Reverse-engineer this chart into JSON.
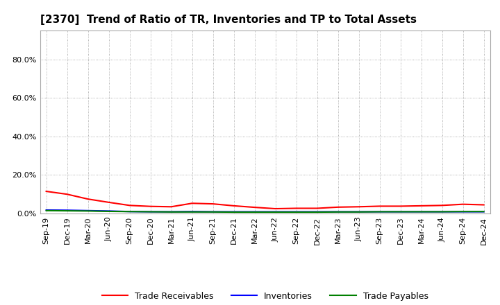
{
  "title": "[2370]  Trend of Ratio of TR, Inventories and TP to Total Assets",
  "x_labels": [
    "Sep-19",
    "Dec-19",
    "Mar-20",
    "Jun-20",
    "Sep-20",
    "Dec-20",
    "Mar-21",
    "Jun-21",
    "Sep-21",
    "Dec-21",
    "Mar-22",
    "Jun-22",
    "Sep-22",
    "Dec-22",
    "Mar-23",
    "Jun-23",
    "Sep-23",
    "Dec-23",
    "Mar-24",
    "Jun-24",
    "Sep-24",
    "Dec-24"
  ],
  "trade_receivables": [
    0.115,
    0.1,
    0.075,
    0.058,
    0.042,
    0.037,
    0.035,
    0.053,
    0.05,
    0.04,
    0.032,
    0.025,
    0.027,
    0.027,
    0.033,
    0.035,
    0.038,
    0.038,
    0.04,
    0.042,
    0.048,
    0.045
  ],
  "inventories": [
    0.018,
    0.017,
    0.015,
    0.013,
    0.01,
    0.009,
    0.009,
    0.01,
    0.009,
    0.009,
    0.009,
    0.009,
    0.009,
    0.009,
    0.009,
    0.009,
    0.009,
    0.009,
    0.009,
    0.009,
    0.009,
    0.009
  ],
  "trade_payables": [
    0.015,
    0.014,
    0.013,
    0.011,
    0.01,
    0.009,
    0.008,
    0.008,
    0.008,
    0.007,
    0.007,
    0.007,
    0.007,
    0.007,
    0.008,
    0.008,
    0.009,
    0.009,
    0.009,
    0.009,
    0.01,
    0.01
  ],
  "ylim": [
    0.0,
    0.95
  ],
  "yticks": [
    0.0,
    0.2,
    0.4,
    0.6,
    0.8
  ],
  "line_colors": {
    "trade_receivables": "#FF0000",
    "inventories": "#0000FF",
    "trade_payables": "#008000"
  },
  "legend_labels": [
    "Trade Receivables",
    "Inventories",
    "Trade Payables"
  ],
  "bg_color": "#FFFFFF",
  "plot_bg_color": "#FFFFFF",
  "grid_color": "#999999",
  "title_fontsize": 11,
  "axis_fontsize": 8,
  "legend_fontsize": 9
}
